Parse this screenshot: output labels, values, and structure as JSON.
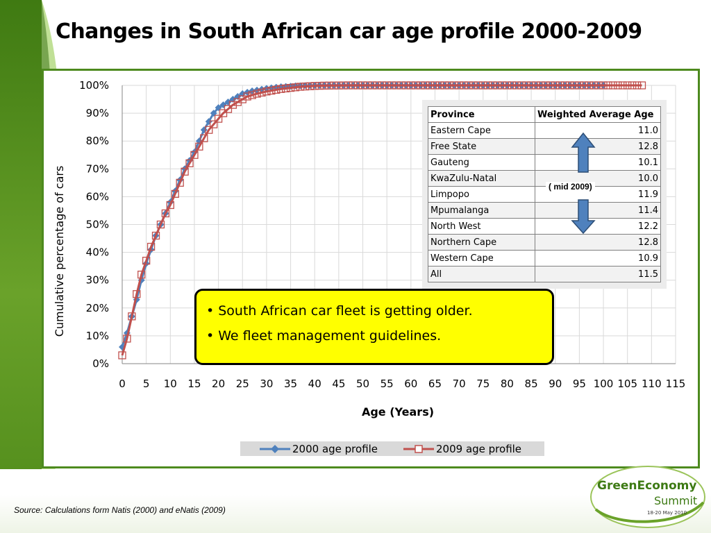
{
  "slide": {
    "title": "Changes in South African car age profile 2000-2009",
    "source": "Source: Calculations form Natis (2000) and eNatis (2009)"
  },
  "chart_data": {
    "type": "line",
    "xlabel": "Age (Years)",
    "ylabel": "Cumulative percentage of cars",
    "xlim": [
      0,
      115
    ],
    "ylim": [
      0,
      100
    ],
    "x_ticks": [
      0,
      5,
      10,
      15,
      20,
      25,
      30,
      35,
      40,
      45,
      50,
      55,
      60,
      65,
      70,
      75,
      80,
      85,
      90,
      95,
      100,
      105,
      110,
      115
    ],
    "y_ticks": [
      "0%",
      "10%",
      "20%",
      "30%",
      "40%",
      "50%",
      "60%",
      "70%",
      "80%",
      "90%",
      "100%"
    ],
    "grid": true,
    "legend_position": "bottom",
    "series": [
      {
        "name": "2000 age profile",
        "color": "#4f81bd",
        "marker": "diamond",
        "x_start": 0,
        "x_end": 100,
        "values": [
          6,
          11,
          17,
          23,
          30,
          36,
          41,
          46,
          50,
          54,
          58,
          62,
          66,
          70,
          73,
          76,
          80,
          84,
          87,
          90,
          92,
          93,
          94,
          95,
          96,
          97,
          97.5,
          98,
          98.3,
          98.6,
          98.9,
          99.1,
          99.3,
          99.5,
          99.6,
          99.7,
          99.8,
          99.85,
          99.9,
          99.92,
          99.94,
          99.96,
          99.97,
          99.98,
          99.99,
          100
        ]
      },
      {
        "name": "2009 age profile",
        "color": "#c0504d",
        "marker": "square",
        "x_start": 0,
        "x_end": 108,
        "values": [
          3,
          9,
          17,
          25,
          32,
          37,
          42,
          46,
          50,
          54,
          57,
          61,
          65,
          69,
          72,
          75,
          78,
          81,
          84,
          86,
          88,
          90,
          91.5,
          93,
          94,
          95,
          96,
          96.5,
          97,
          97.4,
          97.8,
          98.1,
          98.4,
          98.7,
          98.9,
          99.1,
          99.3,
          99.5,
          99.6,
          99.7,
          99.8,
          99.85,
          99.9,
          99.92,
          99.95,
          99.97,
          99.98,
          100
        ]
      }
    ]
  },
  "province_table": {
    "headers": [
      "Province",
      "Weighted Average Age"
    ],
    "rows": [
      [
        "Eastern Cape",
        "11.0"
      ],
      [
        "Free State",
        "12.8"
      ],
      [
        "Gauteng",
        "10.1"
      ],
      [
        "KwaZulu-Natal",
        "10.0"
      ],
      [
        "Limpopo",
        "11.9"
      ],
      [
        "Mpumalanga",
        "11.4"
      ],
      [
        "North West",
        "12.2"
      ],
      [
        "Northern Cape",
        "12.8"
      ],
      [
        "Western Cape",
        "10.9"
      ],
      [
        "All",
        "11.5"
      ]
    ],
    "note": "( mid 2009)"
  },
  "callout": {
    "bullets": [
      "South African car fleet is getting older.",
      "We fleet management guidelines."
    ]
  },
  "logo": {
    "line1": "GreenEconomy",
    "line2": "Summit",
    "line3": "18-20 May 2010"
  }
}
